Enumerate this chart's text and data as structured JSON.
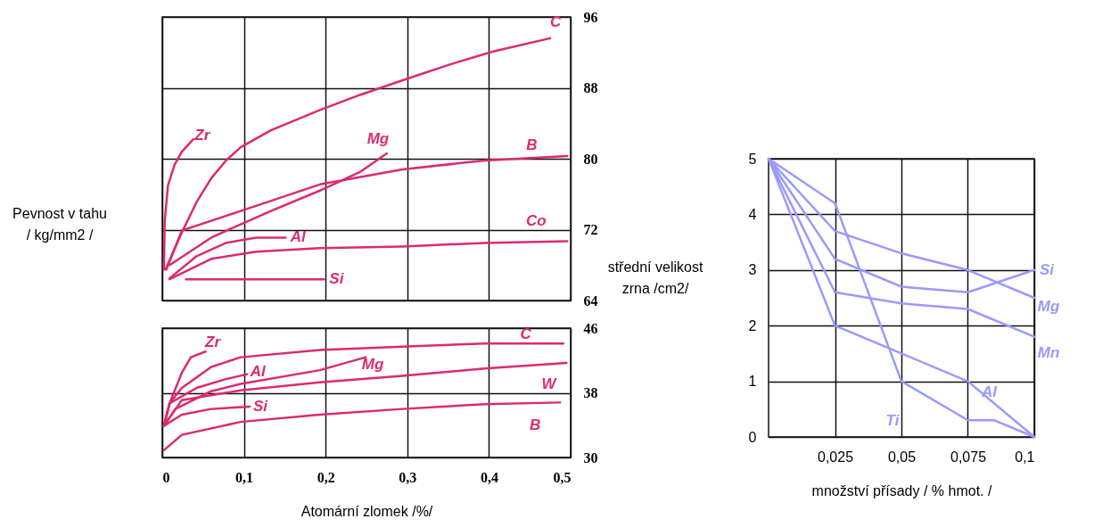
{
  "chart_data": [
    {
      "type": "line",
      "ylabel": "Pevnost v tahu / kg/mm2 /",
      "xlim": [
        0,
        0.5
      ],
      "ylim": [
        64,
        96
      ],
      "xticks": [
        0,
        0.1,
        0.2,
        0.3,
        0.4,
        0.5
      ],
      "yticks": [
        64,
        72,
        80,
        88,
        96
      ],
      "tick_labels": "y",
      "grid": true,
      "series": [
        {
          "name": "C",
          "color": "#dc2a6e",
          "x": [
            0.004,
            0.024,
            0.042,
            0.06,
            0.078,
            0.096,
            0.133,
            0.193,
            0.242,
            0.296,
            0.351,
            0.405,
            0.475
          ],
          "values": [
            67.5,
            71.7,
            75.1,
            77.8,
            79.8,
            81.3,
            83.2,
            85.5,
            87.2,
            88.9,
            90.6,
            92.1,
            93.6
          ]
        },
        {
          "name": "Zr",
          "color": "#dc2a6e",
          "x": [
            0.002,
            0.003,
            0.007,
            0.015,
            0.024,
            0.038
          ],
          "values": [
            67.5,
            73,
            77,
            79.3,
            80.8,
            82.2
          ]
        },
        {
          "name": "Mg",
          "color": "#dc2a6e",
          "x": [
            0.009,
            0.06,
            0.096,
            0.133,
            0.193,
            0.242,
            0.275
          ],
          "values": [
            68,
            71.1,
            72.6,
            74.1,
            76.4,
            78.5,
            80.6
          ]
        },
        {
          "name": "B",
          "color": "#dc2a6e",
          "x": [
            0.005,
            0.024,
            0.096,
            0.193,
            0.294,
            0.395,
            0.496
          ],
          "values": [
            67.5,
            71.9,
            74.1,
            77.1,
            78.8,
            79.8,
            80.3
          ]
        },
        {
          "name": "Al",
          "color": "#dc2a6e",
          "x": [
            0.009,
            0.042,
            0.078,
            0.115,
            0.151
          ],
          "values": [
            66.5,
            69,
            70.5,
            71.1,
            71.1
          ]
        },
        {
          "name": "Co",
          "color": "#dc2a6e",
          "x": [
            0.009,
            0.06,
            0.115,
            0.193,
            0.294,
            0.395,
            0.496
          ],
          "values": [
            66.4,
            68.7,
            69.5,
            69.9,
            70.1,
            70.5,
            70.7
          ]
        },
        {
          "name": "Si",
          "color": "#dc2a6e",
          "x": [
            0.029,
            0.198
          ],
          "values": [
            66.4,
            66.4
          ]
        }
      ]
    },
    {
      "type": "line",
      "xlabel": "Atomární zlomek /%/",
      "xlim": [
        0,
        0.5
      ],
      "ylim": [
        30,
        46
      ],
      "xticks": [
        0,
        {
          "value": 0.1,
          "label": "0,1"
        },
        {
          "value": 0.2,
          "label": "0,2"
        },
        {
          "value": 0.3,
          "label": "0,3"
        },
        {
          "value": 0.4,
          "label": "0,4"
        },
        {
          "value": 0.5,
          "label": "0,5"
        }
      ],
      "yticks": [
        30,
        38,
        46
      ],
      "grid": true,
      "series": [
        {
          "name": "C",
          "color": "#dc2a6e",
          "x": [
            0.002,
            0.009,
            0.024,
            0.06,
            0.096,
            0.193,
            0.294,
            0.395,
            0.491
          ],
          "values": [
            33.9,
            36.7,
            38.6,
            41.2,
            42.4,
            43.3,
            43.7,
            44.1,
            44.1
          ]
        },
        {
          "name": "Zr",
          "color": "#dc2a6e",
          "x": [
            0.002,
            0.009,
            0.024,
            0.035,
            0.053
          ],
          "values": [
            33.9,
            36.7,
            40.5,
            42.4,
            43.1
          ]
        },
        {
          "name": "Al",
          "color": "#dc2a6e",
          "x": [
            0.002,
            0.009,
            0.042,
            0.078,
            0.104
          ],
          "values": [
            33.9,
            36.7,
            38.6,
            39.7,
            40.3
          ]
        },
        {
          "name": "Mg",
          "color": "#dc2a6e",
          "x": [
            0.002,
            0.016,
            0.06,
            0.096,
            0.193,
            0.249
          ],
          "values": [
            33.9,
            36,
            38.2,
            39.1,
            40.8,
            42.4
          ]
        },
        {
          "name": "W",
          "color": "#dc2a6e",
          "x": [
            0.002,
            0.024,
            0.096,
            0.193,
            0.294,
            0.395,
            0.495
          ],
          "values": [
            33.9,
            37.1,
            38.3,
            39.3,
            40.1,
            41,
            41.7
          ]
        },
        {
          "name": "Si",
          "color": "#dc2a6e",
          "x": [
            0.002,
            0.024,
            0.06,
            0.107
          ],
          "values": [
            33.9,
            35.3,
            36,
            36.3
          ]
        },
        {
          "name": "B",
          "color": "#dc2a6e",
          "x": [
            0.002,
            0.024,
            0.096,
            0.193,
            0.294,
            0.395,
            0.487
          ],
          "values": [
            30.9,
            32.8,
            34.4,
            35.3,
            36,
            36.6,
            36.8
          ]
        }
      ]
    },
    {
      "type": "line",
      "xlabel": "množství přísady / % hmot. /",
      "ylabel": "střední velikost zrna /cm2/",
      "xlim": [
        0,
        0.1
      ],
      "ylim": [
        0,
        5
      ],
      "xticks": [
        {
          "value": 0.025,
          "label": "0,025"
        },
        {
          "value": 0.05,
          "label": "0,05"
        },
        {
          "value": 0.075,
          "label": "0,075"
        },
        {
          "value": 0.1,
          "label": "0,1"
        }
      ],
      "yticks": [
        0,
        1,
        2,
        3,
        4,
        5
      ],
      "grid": true,
      "series": [
        {
          "name": "Si",
          "color": "#9999ff",
          "x": [
            0,
            0.025,
            0.05,
            0.075,
            0.1
          ],
          "values": [
            5,
            3.2,
            2.7,
            2.6,
            3
          ]
        },
        {
          "name": "Mg",
          "color": "#9999ff",
          "x": [
            0,
            0.025,
            0.05,
            0.075,
            0.1
          ],
          "values": [
            5,
            3.7,
            3.3,
            3,
            2.5
          ]
        },
        {
          "name": "Mn",
          "color": "#9999ff",
          "x": [
            0,
            0.025,
            0.05,
            0.075,
            0.1
          ],
          "values": [
            5,
            2.6,
            2.4,
            2.3,
            1.8
          ]
        },
        {
          "name": "Al",
          "color": "#9999ff",
          "x": [
            0,
            0.025,
            0.05,
            0.075,
            0.1
          ],
          "values": [
            5,
            2,
            1.5,
            1,
            0
          ]
        },
        {
          "name": "Ti",
          "color": "#9999ff",
          "x": [
            0,
            0.025,
            0.05,
            0.075,
            0.085,
            0.1
          ],
          "values": [
            5,
            4.2,
            1,
            0.3,
            0.3,
            0
          ]
        }
      ]
    }
  ]
}
